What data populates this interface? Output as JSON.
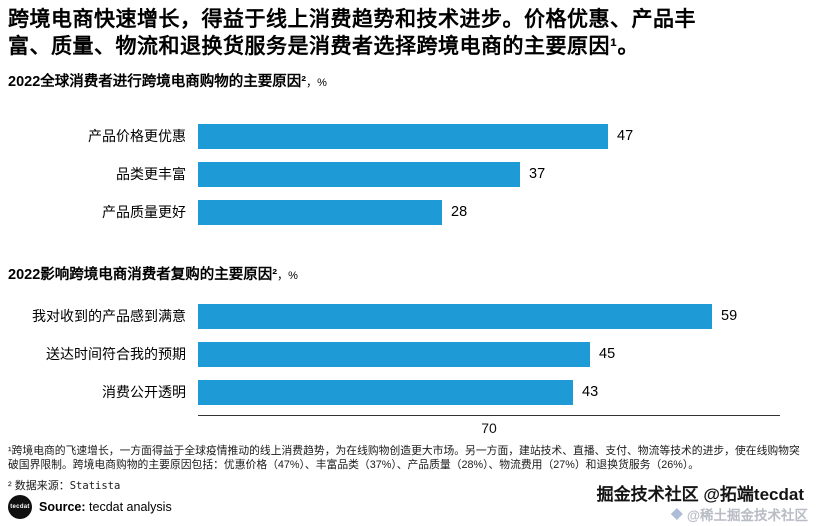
{
  "colors": {
    "bar": "#1e9bd7",
    "axis": "#333333"
  },
  "title_lines": [
    "跨境电商快速增长，得益于线上消费趋势和技术进步。价格优惠、产品丰",
    "富、质量、物流和退换货服务是消费者选择跨境电商的主要原因¹。"
  ],
  "chart_data": [
    {
      "type": "bar",
      "orientation": "horizontal",
      "title": "2022全球消费者进行跨境电商购物的主要原因²",
      "unit_suffix": "，%",
      "categories": [
        "产品价格更优惠",
        "品类更丰富",
        "产品质量更好"
      ],
      "values": [
        47,
        37,
        28
      ],
      "xlim": [
        0,
        70
      ],
      "grid": false,
      "value_labels": true
    },
    {
      "type": "bar",
      "orientation": "horizontal",
      "title": "2022影响跨境电商消费者复购的主要原因²",
      "unit_suffix": "，%",
      "categories": [
        "我对收到的产品感到满意",
        "送达时间符合我的预期",
        "消费公开透明"
      ],
      "values": [
        59,
        45,
        43
      ],
      "xlim": [
        0,
        70
      ],
      "axis_max_label": "70",
      "grid": false,
      "value_labels": true
    }
  ],
  "footnotes": {
    "note1": "¹跨境电商的飞速增长，一方面得益于全球疫情推动的线上消费趋势，为在线购物创造更大市场。另一方面，建站技术、直播、支付、物流等技术的进步，使在线购物突破国界限制。跨境电商购物的主要原因包括：优惠价格（47%）、丰富品类（37%）、产品质量（28%）、物流费用（27%）和退换货服务（26%）。",
    "note2_prefix": "² 数据来源：",
    "note2_source": "Statista"
  },
  "source": {
    "logo_text": "tecdat",
    "label": "Source:",
    "text": " tecdat analysis"
  },
  "watermark": {
    "line1": "掘金技术社区 @拓端tecdat",
    "line2": "@稀土掘金技术社区"
  }
}
